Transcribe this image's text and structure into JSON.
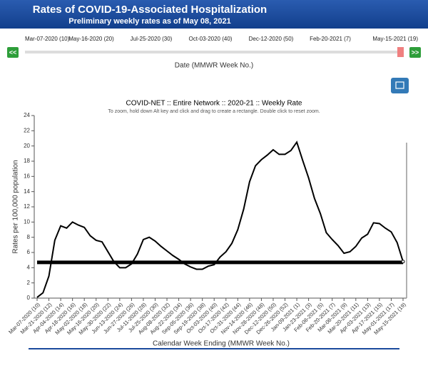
{
  "header": {
    "title": "Rates of COVID-19-Associated Hospitalization",
    "subtitle": "Preliminary weekly rates as of May 08, 2021"
  },
  "slider": {
    "labels": [
      "Mar-07-2020 (10)",
      "May-16-2020 (20)",
      "Jul-25-2020 (30)",
      "Oct-03-2020 (40)",
      "Dec-12-2020 (50)",
      "Feb-20-2021 (7)",
      "May-15-2021 (19)"
    ],
    "prev": "<<",
    "next": ">>",
    "caption": "Date (MMWR Week No.)"
  },
  "chart_data": {
    "type": "line",
    "title": "COVID-NET :: Entire Network :: 2020-21 :: Weekly Rate",
    "subtitle": "To zoom, hold down Alt key and click and drag to create a rectangle. Double click to reset zoom.",
    "y_label": "Rates per 100,000 population",
    "x_label": "Calendar Week Ending (MMWR Week No.)",
    "categories": [
      "Mar-07-2020 (10)",
      null,
      "Mar-21-2020 (12)",
      null,
      "Apr-04-2020 (14)",
      null,
      "Apr-18-2020 (16)",
      null,
      "May-02-2020 (18)",
      null,
      "May-16-2020 (20)",
      null,
      "May-30-2020 (22)",
      null,
      "Jun-13-2020 (24)",
      null,
      "Jun-27-2020 (26)",
      null,
      "Jul-11-2020 (28)",
      null,
      "Jul-25-2020 (30)",
      null,
      "Aug-08-2020 (32)",
      null,
      "Aug-22-2020 (34)",
      null,
      "Sep-05-2020 (36)",
      null,
      "Sep-19-2020 (38)",
      null,
      "Oct-03-2020 (40)",
      null,
      "Oct-17-2020 (42)",
      null,
      "Oct-31-2020 (44)",
      null,
      "Nov-14-2020 (46)",
      null,
      "Nov-28-2020 (48)",
      null,
      "Dec-12-2020 (50)",
      null,
      "Dec-26-2020 (52)",
      null,
      "Jan-09-2021 (1)",
      null,
      "Jan-23-2021 (3)",
      null,
      "Feb-06-2021 (5)",
      null,
      "Feb-20-2021 (7)",
      null,
      "Mar-06-2021 (9)",
      null,
      "Mar-20-2021 (11)",
      null,
      "Apr-03-2021 (13)",
      null,
      "Apr-17-2021 (15)",
      null,
      "May-01-2021 (17)",
      null,
      "May-15-2021 (19)"
    ],
    "values": [
      0.1,
      0.7,
      2.9,
      7.6,
      9.5,
      9.2,
      10.0,
      9.6,
      9.3,
      8.2,
      7.6,
      7.4,
      6.1,
      4.8,
      4.0,
      4.0,
      4.5,
      5.8,
      7.7,
      8.0,
      7.5,
      6.8,
      6.2,
      5.6,
      5.1,
      4.5,
      4.1,
      3.8,
      3.8,
      4.2,
      4.4,
      5.4,
      6.1,
      7.2,
      9.0,
      11.7,
      15.3,
      17.4,
      18.2,
      18.8,
      19.5,
      18.9,
      18.9,
      19.4,
      20.5,
      18.1,
      15.8,
      13.1,
      11.1,
      8.6,
      7.7,
      6.9,
      5.9,
      6.1,
      6.8,
      7.9,
      8.4,
      9.9,
      9.8,
      9.2,
      8.7,
      7.3,
      4.8
    ],
    "color": "#000000",
    "reference_line": {
      "value": 4.7,
      "color": "#000000"
    },
    "ylim": [
      0,
      24
    ],
    "yticks": [
      0,
      2,
      4,
      6,
      8,
      10,
      12,
      14,
      16,
      18,
      20,
      22,
      24
    ],
    "grid": false
  }
}
